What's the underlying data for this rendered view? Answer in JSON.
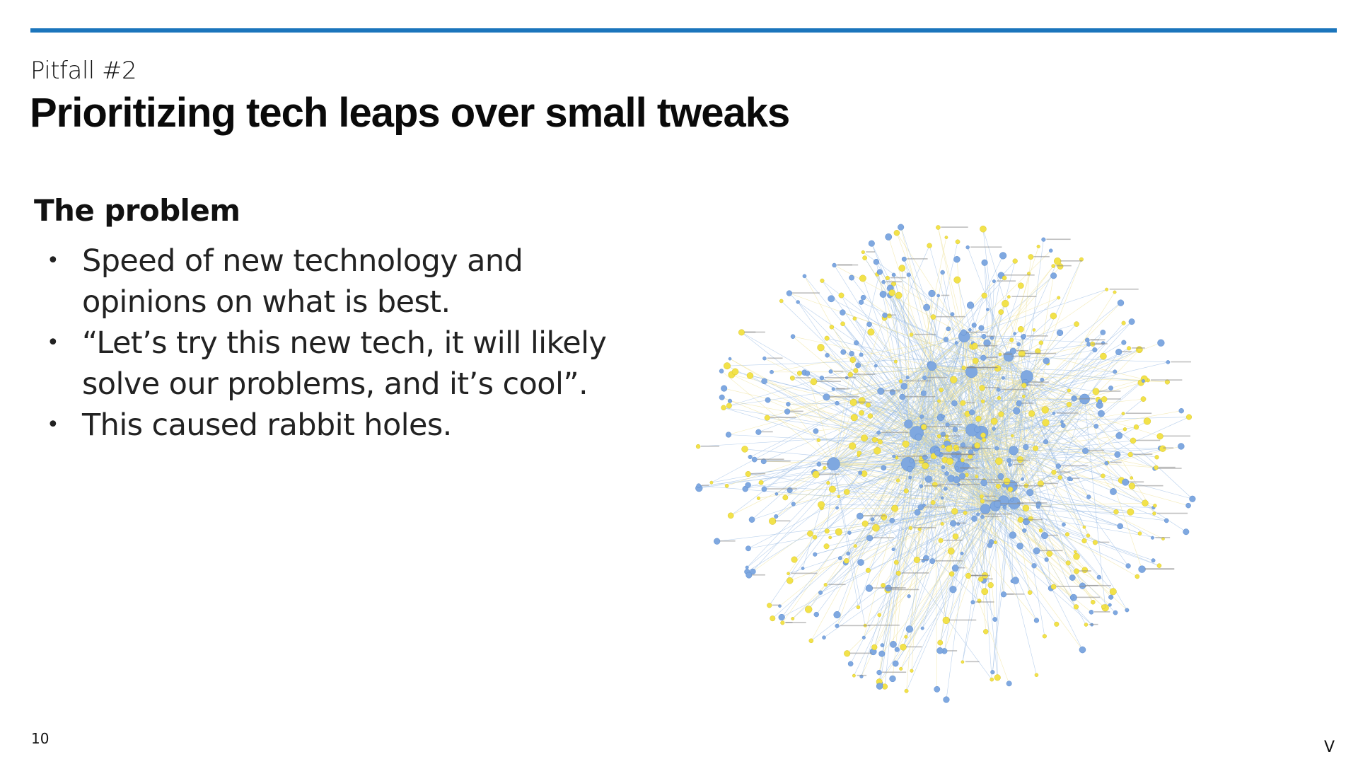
{
  "slide": {
    "eyebrow": "Pitfall #2",
    "title": "Prioritizing tech leaps over small tweaks",
    "section_heading": "The problem",
    "bullets": [
      {
        "text": "Speed of new technology and opinions on what is best."
      },
      {
        "text": "“Let’s try this new tech, it will likely solve our problems, and it’s cool”."
      },
      {
        "text": "This caused rabbit holes."
      }
    ],
    "bullet_glyph": "•",
    "page_number": "10",
    "logo_text": "V"
  },
  "network_graph": {
    "description_icon": "network-graph-illustration",
    "node_colors": {
      "blue": "#7fa8e0",
      "yellow": "#f2e24a"
    },
    "edge_colors": {
      "blue": "#9dbde6",
      "yellow": "#efe39a"
    }
  },
  "colors": {
    "accent": "#1b75bc"
  }
}
